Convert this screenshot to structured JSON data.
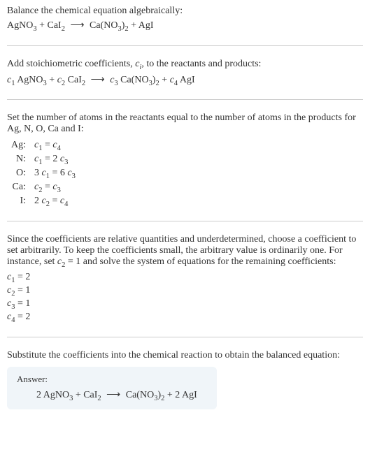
{
  "colors": {
    "text": "#333333",
    "border": "#cccccc",
    "answer_bg": "#f0f5f9",
    "background": "#ffffff"
  },
  "typography": {
    "body_font": "Georgia, Times New Roman, serif",
    "body_size": 14,
    "sub_scale": 0.75
  },
  "section1": {
    "intro": "Balance the chemical equation algebraically:",
    "reactant1": "AgNO",
    "reactant1_sub": "3",
    "plus1": " + ",
    "reactant2": "CaI",
    "reactant2_sub": "2",
    "arrow": "⟶",
    "product1": "Ca(NO",
    "product1_sub1": "3",
    "product1_close": ")",
    "product1_sub2": "2",
    "plus2": " + ",
    "product2": "AgI"
  },
  "section2": {
    "intro_pre": "Add stoichiometric coefficients, ",
    "intro_var": "c",
    "intro_var_sub": "i",
    "intro_post": ", to the reactants and products:",
    "c1": "c",
    "c1_sub": "1",
    "sp1": " AgNO",
    "sp1_sub": "3",
    "plus1": " + ",
    "c2": "c",
    "c2_sub": "2",
    "sp2": " CaI",
    "sp2_sub": "2",
    "arrow": "⟶",
    "c3": "c",
    "c3_sub": "3",
    "sp3": " Ca(NO",
    "sp3_sub1": "3",
    "sp3_close": ")",
    "sp3_sub2": "2",
    "plus2": " + ",
    "c4": "c",
    "c4_sub": "4",
    "sp4": " AgI"
  },
  "section3": {
    "intro": "Set the number of atoms in the reactants equal to the number of atoms in the products for Ag, N, O, Ca and I:",
    "rows": {
      "r1_label": "Ag:",
      "r1_lhs_c": "c",
      "r1_lhs_sub": "1",
      "r1_eq": " = ",
      "r1_rhs_c": "c",
      "r1_rhs_sub": "4",
      "r2_label": "N:",
      "r2_lhs_c": "c",
      "r2_lhs_sub": "1",
      "r2_eq": " = 2 ",
      "r2_rhs_c": "c",
      "r2_rhs_sub": "3",
      "r3_label": "O:",
      "r3_lhs_pre": "3 ",
      "r3_lhs_c": "c",
      "r3_lhs_sub": "1",
      "r3_eq": " = 6 ",
      "r3_rhs_c": "c",
      "r3_rhs_sub": "3",
      "r4_label": "Ca:",
      "r4_lhs_c": "c",
      "r4_lhs_sub": "2",
      "r4_eq": " = ",
      "r4_rhs_c": "c",
      "r4_rhs_sub": "3",
      "r5_label": "I:",
      "r5_lhs_pre": "2 ",
      "r5_lhs_c": "c",
      "r5_lhs_sub": "2",
      "r5_eq": " = ",
      "r5_rhs_c": "c",
      "r5_rhs_sub": "4"
    }
  },
  "section4": {
    "intro_pre": "Since the coefficients are relative quantities and underdetermined, choose a coefficient to set arbitrarily. To keep the coefficients small, the arbitrary value is ordinarily one. For instance, set ",
    "intro_c": "c",
    "intro_c_sub": "2",
    "intro_post": " = 1 and solve the system of equations for the remaining coefficients:",
    "coeffs": {
      "c1_var": "c",
      "c1_sub": "1",
      "c1_val": " = 2",
      "c2_var": "c",
      "c2_sub": "2",
      "c2_val": " = 1",
      "c3_var": "c",
      "c3_sub": "3",
      "c3_val": " = 1",
      "c4_var": "c",
      "c4_sub": "4",
      "c4_val": " = 2"
    }
  },
  "section5": {
    "intro": "Substitute the coefficients into the chemical reaction to obtain the balanced equation:"
  },
  "answer": {
    "label": "Answer:",
    "pre1": "2 AgNO",
    "sub1": "3",
    "plus1": " + CaI",
    "sub2": "2",
    "arrow": "⟶",
    "pre2": "Ca(NO",
    "sub3": "3",
    "close2": ")",
    "sub4": "2",
    "plus2": " + 2 AgI"
  }
}
